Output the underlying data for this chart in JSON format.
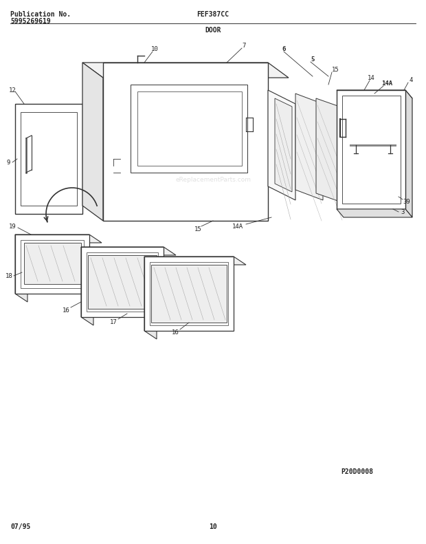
{
  "pub_label": "Publication No.",
  "pub_number": "5995269619",
  "model": "FEF387CC",
  "section": "DOOR",
  "date": "07/95",
  "page": "10",
  "diagram_code": "P20D0008",
  "bg_color": "#ffffff",
  "line_color": "#333333",
  "text_color": "#222222",
  "watermark": "eReplacementParts.com",
  "header_fontsize": 7,
  "label_fontsize": 6.5
}
